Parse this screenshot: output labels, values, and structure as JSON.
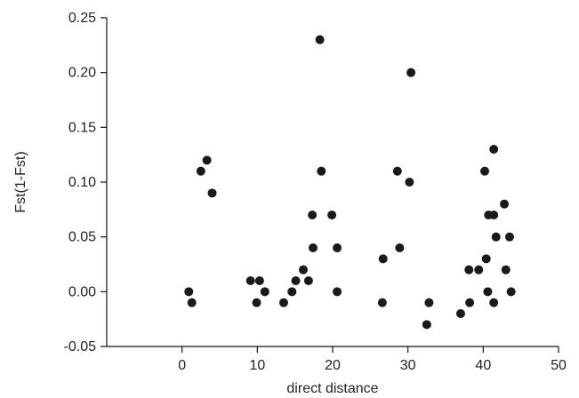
{
  "chart_data": {
    "type": "scatter",
    "title": "",
    "xlabel": "direct distance",
    "ylabel": "Fst(1-Fst)",
    "xlim": [
      -10,
      50
    ],
    "ylim": [
      -0.05,
      0.25
    ],
    "xticks": [
      0,
      10,
      20,
      30,
      40,
      50
    ],
    "yticks": [
      -0.05,
      0.0,
      0.05,
      0.1,
      0.15,
      0.2,
      0.25
    ],
    "xtick_labels": [
      "0",
      "10",
      "20",
      "30",
      "40",
      "50"
    ],
    "ytick_labels": [
      "-0.05",
      "0.00",
      "0.05",
      "0.10",
      "0.15",
      "0.20",
      "0.25"
    ],
    "grid": false,
    "marker_color": "#1a1a1a",
    "series": [
      {
        "points": [
          [
            0.9,
            0.0
          ],
          [
            1.3,
            -0.01
          ],
          [
            2.5,
            0.11
          ],
          [
            3.3,
            0.12
          ],
          [
            4.0,
            0.09
          ],
          [
            9.1,
            0.01
          ],
          [
            9.9,
            -0.01
          ],
          [
            10.3,
            0.01
          ],
          [
            11.0,
            0.0
          ],
          [
            13.5,
            -0.01
          ],
          [
            14.6,
            0.0
          ],
          [
            15.1,
            0.01
          ],
          [
            16.1,
            0.02
          ],
          [
            16.8,
            0.01
          ],
          [
            17.3,
            0.07
          ],
          [
            17.4,
            0.04
          ],
          [
            18.3,
            0.23
          ],
          [
            18.5,
            0.11
          ],
          [
            19.9,
            0.07
          ],
          [
            20.6,
            0.04
          ],
          [
            20.6,
            0.0
          ],
          [
            26.6,
            -0.01
          ],
          [
            26.7,
            0.03
          ],
          [
            28.6,
            0.11
          ],
          [
            28.9,
            0.04
          ],
          [
            30.2,
            0.1
          ],
          [
            30.4,
            0.2
          ],
          [
            32.5,
            -0.03
          ],
          [
            32.8,
            -0.01
          ],
          [
            37.0,
            -0.02
          ],
          [
            38.1,
            0.02
          ],
          [
            38.2,
            -0.01
          ],
          [
            39.4,
            0.02
          ],
          [
            40.2,
            0.11
          ],
          [
            40.4,
            0.03
          ],
          [
            40.6,
            0.0
          ],
          [
            40.7,
            0.07
          ],
          [
            41.4,
            0.13
          ],
          [
            41.4,
            0.07
          ],
          [
            41.4,
            -0.01
          ],
          [
            41.7,
            0.05
          ],
          [
            42.8,
            0.08
          ],
          [
            43.0,
            0.02
          ],
          [
            43.5,
            0.05
          ],
          [
            43.7,
            0.0
          ]
        ]
      }
    ]
  }
}
